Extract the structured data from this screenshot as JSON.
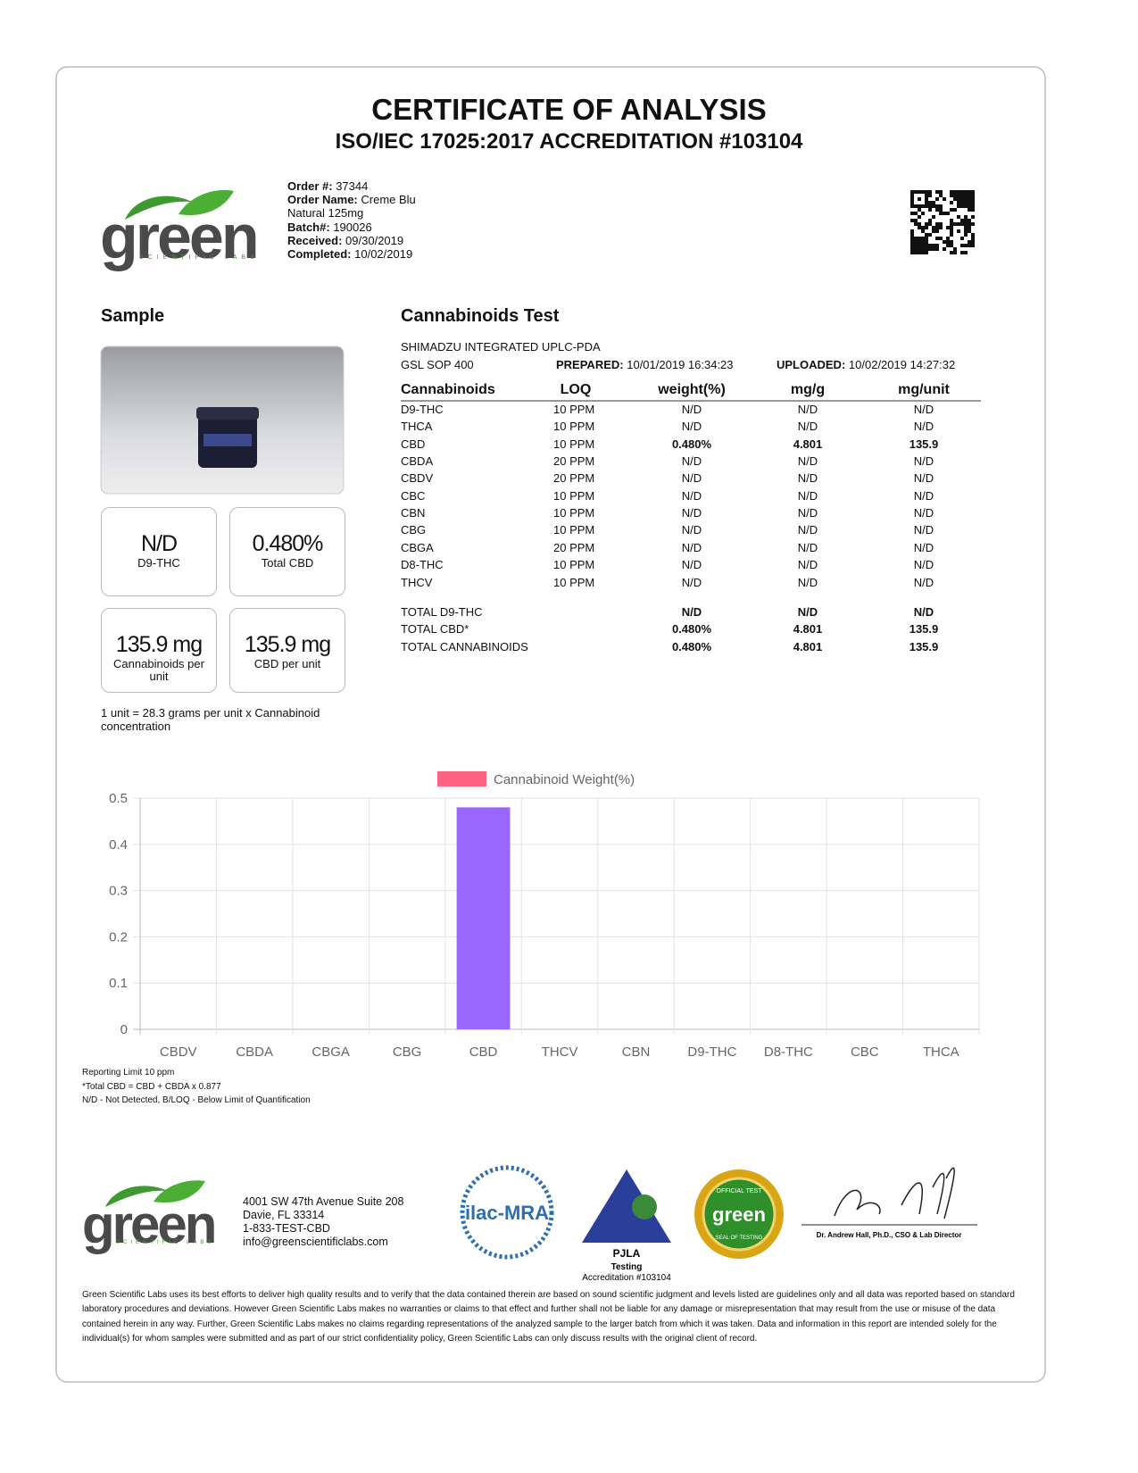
{
  "header": {
    "title": "CERTIFICATE OF ANALYSIS",
    "subtitle": "ISO/IEC 17025:2017 ACCREDITATION #103104",
    "logo_text": "green",
    "logo_sub": "SCIENTIFIC LABS"
  },
  "order": [
    {
      "label": "Order #:",
      "value": "37344"
    },
    {
      "label": "Order Name:",
      "value": "Creme Blu"
    },
    {
      "value": "Natural 125mg"
    },
    {
      "label": "Batch#:",
      "value": "190026"
    },
    {
      "label": "Received:",
      "value": "09/30/2019"
    },
    {
      "label": "Completed:",
      "value": "10/02/2019"
    }
  ],
  "sample": {
    "heading": "Sample",
    "summary": [
      {
        "value": "N/D",
        "label": "D9-THC"
      },
      {
        "value": "0.480%",
        "label": "Total CBD"
      },
      {
        "value": "135.9 mg",
        "label": "Cannabinoids per unit"
      },
      {
        "value": "135.9 mg",
        "label": "CBD per unit"
      }
    ],
    "note": "1 unit = 28.3 grams per unit x Cannabinoid concentration"
  },
  "test": {
    "heading": "Cannabinoids Test",
    "method": "SHIMADZU INTEGRATED UPLC-PDA",
    "sop": "GSL SOP 400",
    "prepared_label": "PREPARED:",
    "prepared": "10/01/2019 16:34:23",
    "uploaded_label": "UPLOADED:",
    "uploaded": "10/02/2019 14:27:32",
    "table": {
      "columns": [
        "Cannabinoids",
        "LOQ",
        "weight(%)",
        "mg/g",
        "mg/unit"
      ],
      "rows": [
        [
          "D9-THC",
          "10 PPM",
          "N/D",
          "N/D",
          "N/D"
        ],
        [
          "THCA",
          "10 PPM",
          "N/D",
          "N/D",
          "N/D"
        ],
        [
          "CBD",
          "10 PPM",
          "0.480%",
          "4.801",
          "135.9"
        ],
        [
          "CBDA",
          "20 PPM",
          "N/D",
          "N/D",
          "N/D"
        ],
        [
          "CBDV",
          "20 PPM",
          "N/D",
          "N/D",
          "N/D"
        ],
        [
          "CBC",
          "10 PPM",
          "N/D",
          "N/D",
          "N/D"
        ],
        [
          "CBN",
          "10 PPM",
          "N/D",
          "N/D",
          "N/D"
        ],
        [
          "CBG",
          "10 PPM",
          "N/D",
          "N/D",
          "N/D"
        ],
        [
          "CBGA",
          "20 PPM",
          "N/D",
          "N/D",
          "N/D"
        ],
        [
          "D8-THC",
          "10 PPM",
          "N/D",
          "N/D",
          "N/D"
        ],
        [
          "THCV",
          "10 PPM",
          "N/D",
          "N/D",
          "N/D"
        ]
      ],
      "totals": [
        [
          "TOTAL D9-THC",
          "",
          "N/D",
          "N/D",
          "N/D"
        ],
        [
          "TOTAL CBD*",
          "",
          "0.480%",
          "4.801",
          "135.9"
        ],
        [
          "TOTAL CANNABINOIDS",
          "",
          "0.480%",
          "4.801",
          "135.9"
        ]
      ]
    }
  },
  "chart_data": {
    "type": "bar",
    "categories": [
      "CBDV",
      "CBDA",
      "CBGA",
      "CBG",
      "CBD",
      "THCV",
      "CBN",
      "D9-THC",
      "D8-THC",
      "CBC",
      "THCA"
    ],
    "series": [
      {
        "name": "Cannabinoid Weight(%)",
        "color": "#9966ff",
        "legend_color": "#ff6384",
        "values": [
          0,
          0,
          0,
          0,
          0.48,
          0,
          0,
          0,
          0,
          0,
          0
        ]
      }
    ],
    "ylim": [
      0,
      0.5
    ],
    "yticks": [
      0,
      0.1,
      0.2,
      0.3,
      0.4,
      0.5
    ],
    "grid": true,
    "legend": "top"
  },
  "notes": [
    "Reporting Limit 10 ppm",
    "*Total CBD = CBD + CBDA x 0.877",
    "N/D - Not Detected, B/LOQ - Below Limit of Quantification"
  ],
  "footer": {
    "address": [
      "4001 SW 47th Avenue Suite 208",
      "Davie, FL 33314",
      "1-833-TEST-CBD",
      "info@greenscientificlabs.com"
    ],
    "ilac": "ilac-MRA",
    "pjla": "PJLA",
    "pjla_sub": "Testing",
    "pjla_accreditation": "Accreditation #103104",
    "seal_top": "OFFICIAL TEST",
    "seal_bottom": "SEAL OF TESTING",
    "signatory": "Dr. Andrew Hall, Ph.D., CSO & Lab Director"
  },
  "disclaimer": "Green Scientific Labs uses its best efforts to deliver high quality results and to verify that the data contained therein are based on sound scientific judgment and levels listed are guidelines only and all data was reported based on standard laboratory procedures and deviations. However Green Scientific Labs makes no warranties or claims to that effect and further shall not be liable for any damage or misrepresentation that may result from the use or misuse of the data contained herein in any way. Further, Green Scientific Labs makes no claims regarding representations of the analyzed sample to the larger batch from which it was taken. Data and information in this report are intended solely for the individual(s) for whom samples were submitted and as part of our strict confidentiality policy, Green Scientific Labs can only discuss results with the original client of record."
}
